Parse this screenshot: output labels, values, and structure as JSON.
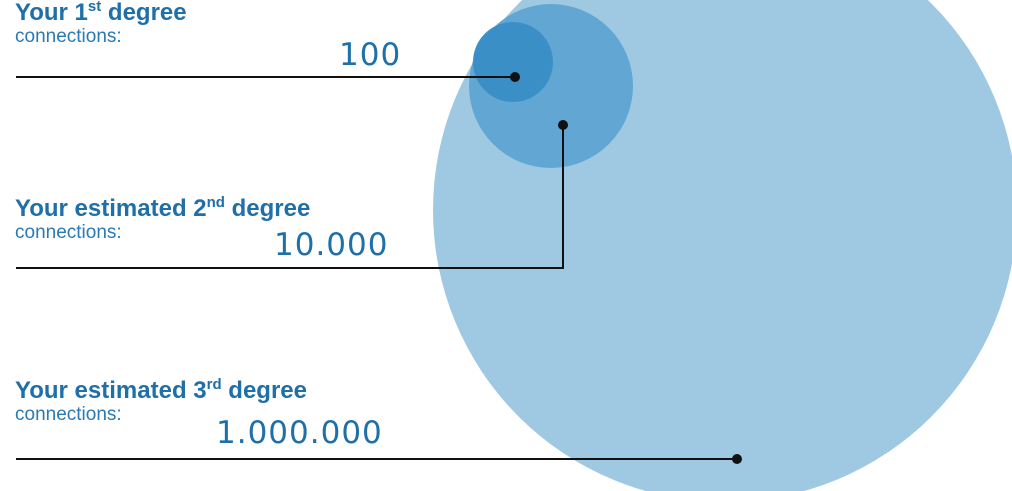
{
  "colors": {
    "text": "#1f6fa8",
    "circle_first": "#3b8fc7",
    "circle_second": "#62a6d3",
    "circle_third": "#9fc9e2",
    "line": "#111111"
  },
  "levels": [
    {
      "title_prefix": "Your 1",
      "ordinal_suffix": "st",
      "title_rest": " degree",
      "subtitle": "connections:",
      "value": "100"
    },
    {
      "title_prefix": "Your estimated 2",
      "ordinal_suffix": "nd",
      "title_rest": " degree",
      "subtitle": "connections:",
      "value": "10.000"
    },
    {
      "title_prefix": "Your estimated 3",
      "ordinal_suffix": "rd",
      "title_rest": " degree",
      "subtitle": "connections:",
      "value": "1.000.000"
    }
  ]
}
